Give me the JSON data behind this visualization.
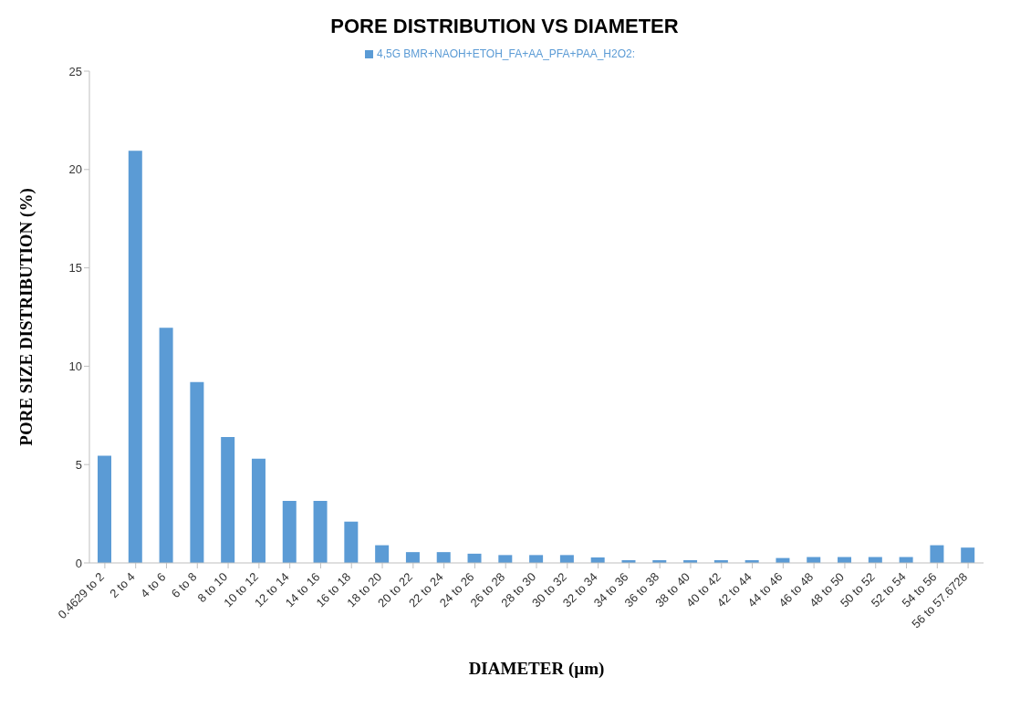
{
  "chart_data": {
    "type": "bar",
    "title": "PORE DISTRIBUTION VS DIAMETER",
    "xlabel": "DIAMETER (µm)",
    "ylabel": "PORE SIZE DISTRIBUTION (%)",
    "categories": [
      "0.4629 to 2",
      "2 to 4",
      "4 to 6",
      "6 to 8",
      "8 to 10",
      "10 to 12",
      "12 to 14",
      "14 to 16",
      "16 to 18",
      "18 to 20",
      "20 to 22",
      "22 to 24",
      "24 to 26",
      "26 to 28",
      "28 to 30",
      "30 to 32",
      "32 to 34",
      "34 to 36",
      "36 to 38",
      "38 to 40",
      "40 to 42",
      "42 to 44",
      "44 to 46",
      "46 to 48",
      "48 to 50",
      "50 to 52",
      "52 to 54",
      "54 to 56",
      "56 to 57.6728"
    ],
    "series": [
      {
        "name": "4,5G BMR+NAOH+ETOH_FA+AA_PFA+PAA_H2O2:",
        "color": "#5b9bd5",
        "values": [
          5.45,
          20.95,
          11.95,
          9.2,
          6.4,
          5.3,
          3.15,
          3.15,
          2.1,
          0.9,
          0.55,
          0.55,
          0.47,
          0.4,
          0.4,
          0.4,
          0.28,
          0.14,
          0.14,
          0.14,
          0.14,
          0.14,
          0.25,
          0.3,
          0.3,
          0.3,
          0.3,
          0.9,
          0.78
        ]
      }
    ],
    "ylim": [
      0,
      25
    ],
    "yticks": [
      0,
      5,
      10,
      15,
      20,
      25
    ],
    "grid": false,
    "legend": "top"
  }
}
